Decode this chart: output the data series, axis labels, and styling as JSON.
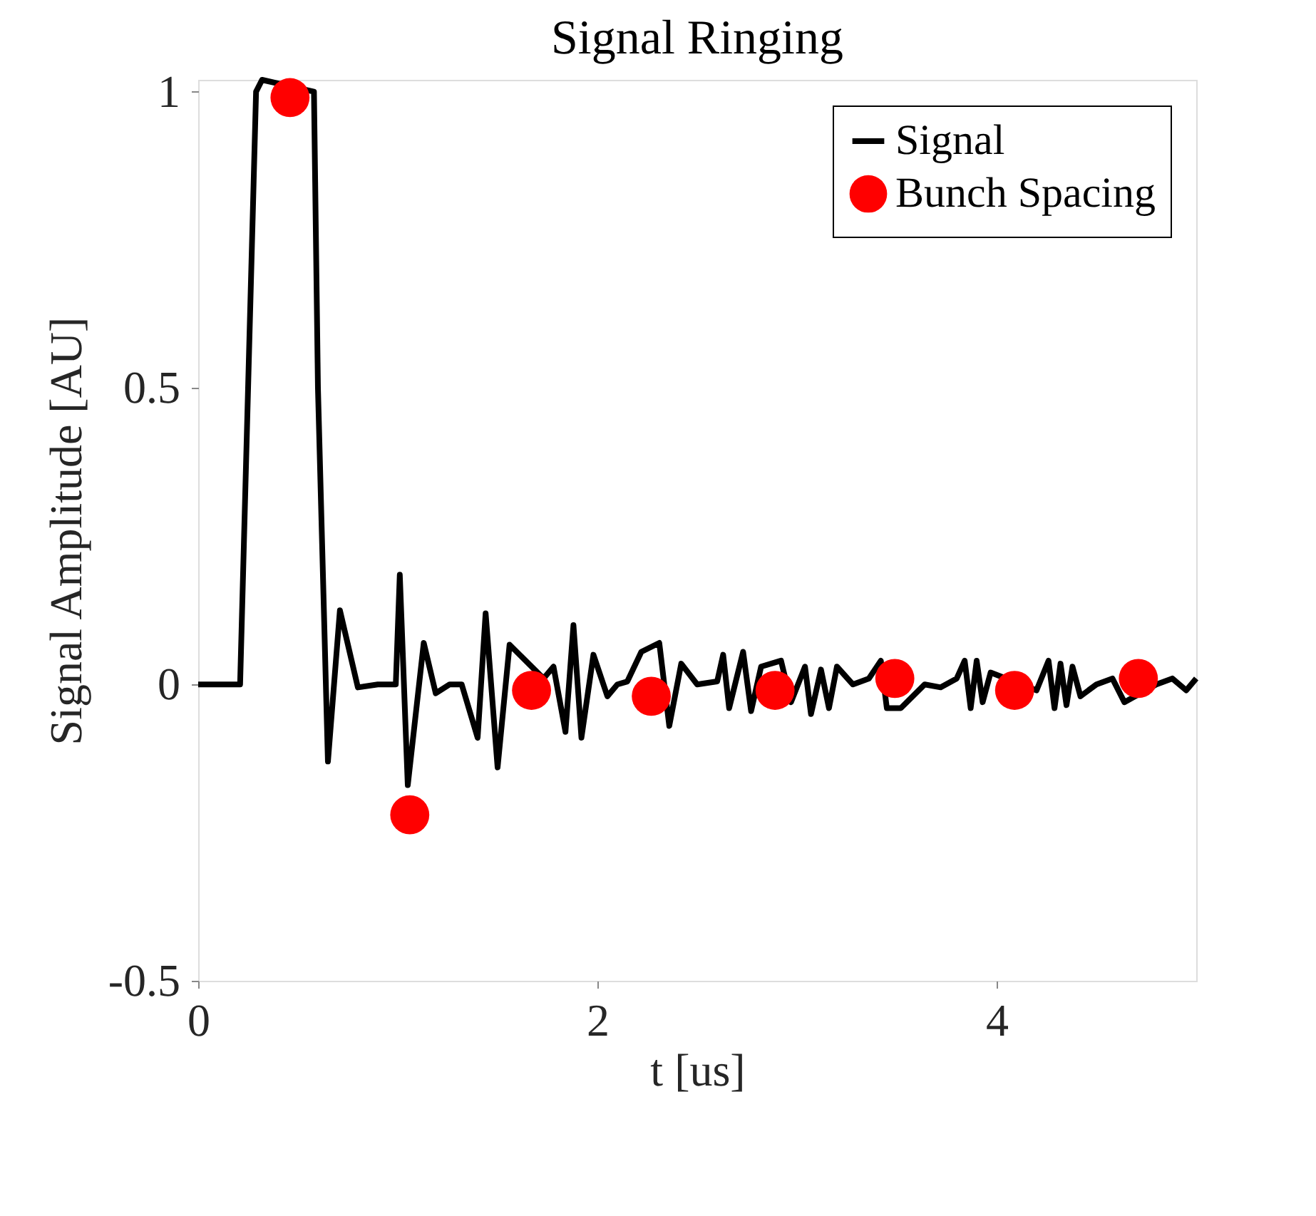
{
  "chart_data": {
    "type": "line",
    "title": "Signal Ringing",
    "xlabel": "t [us]",
    "ylabel": "Signal Amplitude [AU]",
    "xlim": [
      0,
      5
    ],
    "ylim": [
      -0.5,
      1.02
    ],
    "xticks": [
      0,
      2,
      4
    ],
    "yticks": [
      -0.5,
      0,
      0.5,
      1
    ],
    "grid": false,
    "legend": "top right",
    "series": [
      {
        "name": "Signal",
        "color": "#000000",
        "line_style": "solid",
        "marker": "none",
        "x": [
          0,
          0.21,
          0.25,
          0.29,
          0.32,
          0.58,
          0.6,
          0.65,
          0.71,
          0.8,
          0.9,
          0.99,
          1.01,
          1.05,
          1.13,
          1.19,
          1.26,
          1.32,
          1.4,
          1.44,
          1.5,
          1.56,
          1.73,
          1.78,
          1.84,
          1.88,
          1.92,
          1.98,
          2.05,
          2.1,
          2.15,
          2.22,
          2.31,
          2.36,
          2.42,
          2.5,
          2.6,
          2.63,
          2.66,
          2.73,
          2.77,
          2.82,
          2.92,
          2.97,
          3.04,
          3.07,
          3.12,
          3.16,
          3.2,
          3.28,
          3.36,
          3.42,
          3.45,
          3.52,
          3.64,
          3.72,
          3.8,
          3.84,
          3.87,
          3.9,
          3.93,
          3.97,
          4.2,
          4.26,
          4.29,
          4.32,
          4.35,
          4.38,
          4.42,
          4.5,
          4.58,
          4.64,
          4.8,
          4.88,
          4.95,
          5.0
        ],
        "values": [
          0,
          0,
          0.5,
          1.0,
          1.02,
          1.0,
          0.5,
          -0.13,
          0.125,
          -0.005,
          0.0,
          0.0,
          0.185,
          -0.17,
          0.07,
          -0.015,
          0.0,
          0.0,
          -0.09,
          0.12,
          -0.14,
          0.067,
          0.01,
          0.03,
          -0.08,
          0.1,
          -0.09,
          0.05,
          -0.02,
          0.0,
          0.005,
          0.055,
          0.07,
          -0.07,
          0.035,
          0.0,
          0.005,
          0.05,
          -0.04,
          0.055,
          -0.045,
          0.03,
          0.04,
          -0.03,
          0.03,
          -0.05,
          0.025,
          -0.04,
          0.03,
          0.0,
          0.01,
          0.04,
          -0.04,
          -0.04,
          0.0,
          -0.005,
          0.01,
          0.04,
          -0.04,
          0.04,
          -0.03,
          0.02,
          -0.01,
          0.04,
          -0.04,
          0.035,
          -0.035,
          0.03,
          -0.02,
          0.0,
          0.01,
          -0.03,
          0.0,
          0.01,
          -0.01,
          0.01
        ]
      },
      {
        "name": "Bunch Spacing",
        "type": "scatter",
        "color": "#ff0000",
        "marker": "circle",
        "x": [
          0.46,
          1.06,
          1.67,
          2.27,
          2.89,
          3.49,
          4.09,
          4.71
        ],
        "values": [
          0.99,
          -0.22,
          -0.01,
          -0.02,
          -0.01,
          0.01,
          -0.01,
          0.01
        ]
      }
    ]
  }
}
